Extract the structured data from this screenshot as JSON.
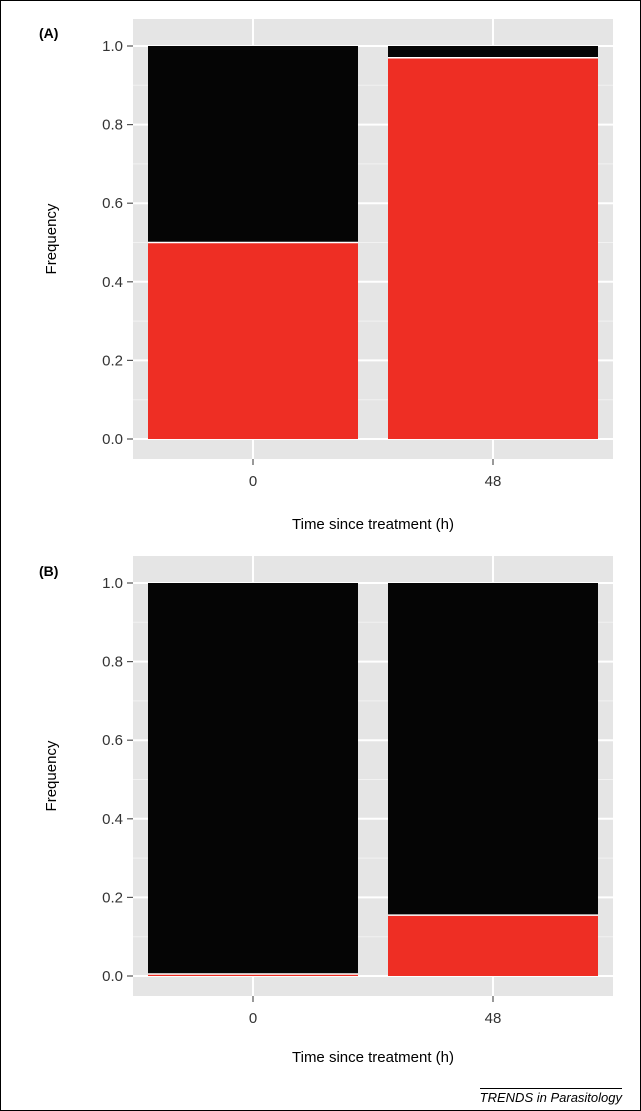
{
  "colors": {
    "panel_bg": "#e5e5e5",
    "grid_major": "#ffffff",
    "grid_minor": "#f2f2f2",
    "series_red": "#ee2e24",
    "series_black": "#050505"
  },
  "credit": "TRENDS in Parasitology",
  "chart_data": [
    {
      "panel": "(A)",
      "type": "bar",
      "stacked": true,
      "xlabel": "Time since treatment (h)",
      "ylabel": "Frequency",
      "categories": [
        "0",
        "48"
      ],
      "ylim": [
        0,
        1
      ],
      "yticks": [
        "0.0",
        "0.2",
        "0.4",
        "0.6",
        "0.8",
        "1.0"
      ],
      "grid": true,
      "legend": "none",
      "series": [
        {
          "color": "#ee2e24",
          "values": [
            0.5,
            0.97
          ]
        },
        {
          "color": "#050505",
          "values": [
            0.5,
            0.03
          ]
        }
      ]
    },
    {
      "panel": "(B)",
      "type": "bar",
      "stacked": true,
      "xlabel": "Time since treatment (h)",
      "ylabel": "Frequency",
      "categories": [
        "0",
        "48"
      ],
      "ylim": [
        0,
        1
      ],
      "yticks": [
        "0.0",
        "0.2",
        "0.4",
        "0.6",
        "0.8",
        "1.0"
      ],
      "grid": true,
      "legend": "none",
      "series": [
        {
          "color": "#ee2e24",
          "values": [
            0.005,
            0.155
          ]
        },
        {
          "color": "#050505",
          "values": [
            0.995,
            0.845
          ]
        }
      ]
    }
  ]
}
